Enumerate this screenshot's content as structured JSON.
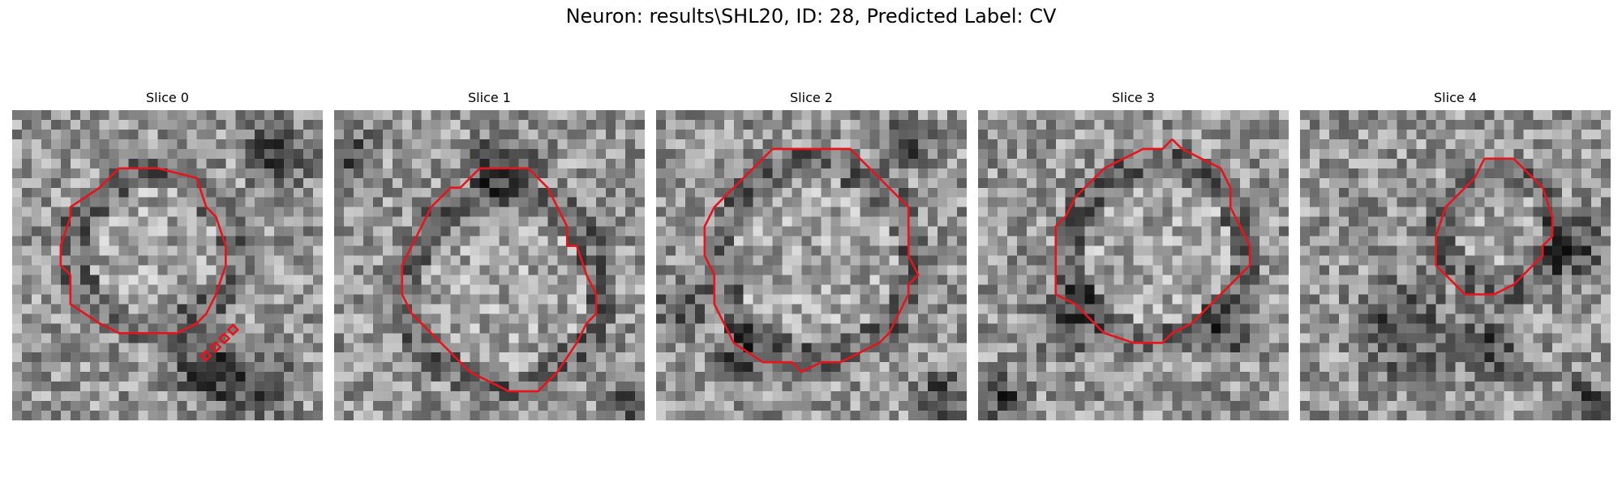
{
  "figure": {
    "title": "Neuron: results\\SHL20, ID: 28, Predicted Label: CV"
  },
  "colors": {
    "contour": "#e8141c",
    "background": "#ffffff"
  },
  "image_style": "grayscale noisy microscopy slice",
  "panels": [
    {
      "title": "Slice 0",
      "seed": 11
    },
    {
      "title": "Slice 1",
      "seed": 23
    },
    {
      "title": "Slice 2",
      "seed": 37
    },
    {
      "title": "Slice 3",
      "seed": 51
    },
    {
      "title": "Slice 4",
      "seed": 67
    }
  ]
}
